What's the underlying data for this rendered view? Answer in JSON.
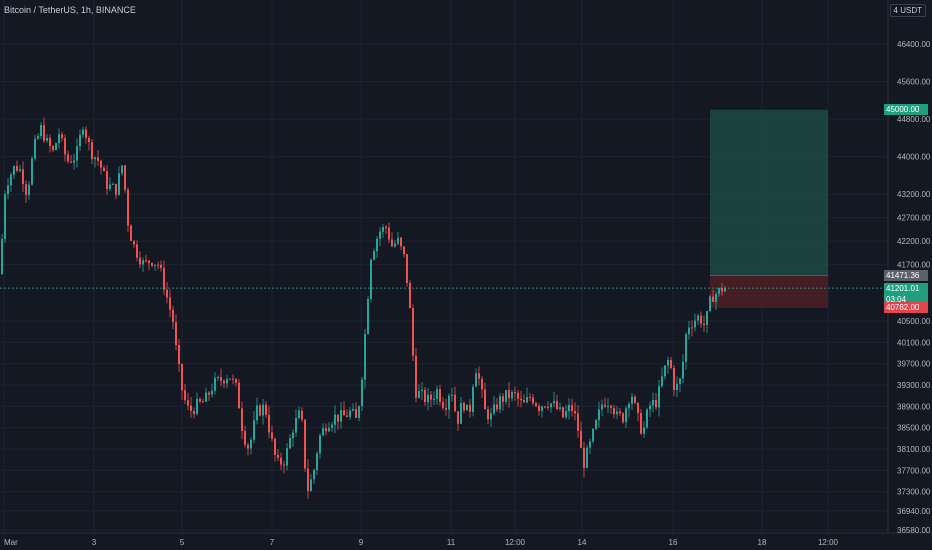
{
  "header": {
    "symbol": "Bitcoin / TetherUS, 1h, BINANCE",
    "currency": "USDT",
    "currency_prefix": "4"
  },
  "markers": {
    "target": {
      "price": "45000.00",
      "color": "#1f9f7f"
    },
    "entry_ref": {
      "price": "41471.36",
      "color": "#5c606b"
    },
    "last": {
      "price": "41201.01",
      "countdown": "03:04",
      "color": "#1f9f7f"
    },
    "stop": {
      "price": "40782.00",
      "color": "#e0464c"
    }
  },
  "chart_data": {
    "type": "candlestick",
    "title": "Bitcoin / TetherUS, 1h, BINANCE",
    "y_axis": {
      "ticks": [
        46400,
        45600,
        44800,
        44000,
        43200,
        42700,
        42200,
        41700,
        40500,
        40100,
        39700,
        39300,
        38900,
        38500,
        38100,
        37700,
        37300,
        36940,
        36580
      ],
      "tick_labels": [
        "46400.00",
        "45600.00",
        "44800.00",
        "44000.00",
        "43200.00",
        "42700.00",
        "42200.00",
        "41700.00",
        "40500.00",
        "40100.00",
        "39700.00",
        "39300.00",
        "38900.00",
        "38500.00",
        "38100.00",
        "37700.00",
        "37300.00",
        "36940.00",
        "36580.00"
      ],
      "range": [
        36500,
        47300
      ]
    },
    "x_axis": {
      "tick_labels": [
        "Mar",
        "3",
        "5",
        "7",
        "9",
        "11",
        "12:00",
        "14",
        "16",
        "18",
        "12:00"
      ]
    },
    "path": [
      [
        0,
        41500
      ],
      [
        2,
        43000
      ],
      [
        5,
        43400
      ],
      [
        9,
        43600
      ],
      [
        14,
        43800
      ],
      [
        20,
        43700
      ],
      [
        26,
        43200
      ],
      [
        33,
        44200
      ],
      [
        40,
        44600
      ],
      [
        46,
        44300
      ],
      [
        52,
        44100
      ],
      [
        58,
        44500
      ],
      [
        66,
        43900
      ],
      [
        75,
        44000
      ],
      [
        82,
        44700
      ],
      [
        90,
        44100
      ],
      [
        98,
        43900
      ],
      [
        106,
        43400
      ],
      [
        115,
        43300
      ],
      [
        122,
        43900
      ],
      [
        126,
        42700
      ],
      [
        131,
        42200
      ],
      [
        137,
        41900
      ],
      [
        143,
        41700
      ],
      [
        150,
        41800
      ],
      [
        158,
        41700
      ],
      [
        166,
        41000
      ],
      [
        172,
        40500
      ],
      [
        176,
        39800
      ],
      [
        182,
        39100
      ],
      [
        188,
        38800
      ],
      [
        195,
        38900
      ],
      [
        204,
        39000
      ],
      [
        212,
        39300
      ],
      [
        220,
        39400
      ],
      [
        228,
        39500
      ],
      [
        236,
        39200
      ],
      [
        242,
        38400
      ],
      [
        248,
        38100
      ],
      [
        256,
        38800
      ],
      [
        264,
        38900
      ],
      [
        270,
        38300
      ],
      [
        276,
        37800
      ],
      [
        284,
        37900
      ],
      [
        292,
        38500
      ],
      [
        300,
        38800
      ],
      [
        306,
        37300
      ],
      [
        312,
        37600
      ],
      [
        318,
        38300
      ],
      [
        326,
        38600
      ],
      [
        334,
        38700
      ],
      [
        342,
        38700
      ],
      [
        350,
        38800
      ],
      [
        356,
        38600
      ],
      [
        362,
        39700
      ],
      [
        370,
        41900
      ],
      [
        378,
        42400
      ],
      [
        385,
        42500
      ],
      [
        391,
        42100
      ],
      [
        397,
        42200
      ],
      [
        404,
        41800
      ],
      [
        410,
        40500
      ],
      [
        414,
        39200
      ],
      [
        420,
        39100
      ],
      [
        428,
        39000
      ],
      [
        436,
        39200
      ],
      [
        444,
        38900
      ],
      [
        450,
        39300
      ],
      [
        456,
        38600
      ],
      [
        462,
        39000
      ],
      [
        468,
        38700
      ],
      [
        474,
        39700
      ],
      [
        478,
        39400
      ],
      [
        484,
        38800
      ],
      [
        490,
        38700
      ],
      [
        498,
        39000
      ],
      [
        506,
        39100
      ],
      [
        514,
        39100
      ],
      [
        522,
        38900
      ],
      [
        530,
        39100
      ],
      [
        538,
        38900
      ],
      [
        546,
        39000
      ],
      [
        554,
        38900
      ],
      [
        562,
        38700
      ],
      [
        570,
        38900
      ],
      [
        576,
        38600
      ],
      [
        582,
        37800
      ],
      [
        588,
        38100
      ],
      [
        594,
        38500
      ],
      [
        602,
        39000
      ],
      [
        610,
        39000
      ],
      [
        616,
        38700
      ],
      [
        622,
        38700
      ],
      [
        630,
        39200
      ],
      [
        636,
        38700
      ],
      [
        642,
        38400
      ],
      [
        648,
        38900
      ],
      [
        656,
        39000
      ],
      [
        662,
        39500
      ],
      [
        668,
        39800
      ],
      [
        674,
        39200
      ],
      [
        680,
        39400
      ],
      [
        686,
        40400
      ],
      [
        692,
        40500
      ],
      [
        698,
        40600
      ],
      [
        704,
        40400
      ],
      [
        710,
        41000
      ],
      [
        716,
        41100
      ],
      [
        722,
        41200
      ],
      [
        726,
        41201
      ]
    ],
    "annotations": {
      "target_zone": [
        45000,
        41471.36
      ],
      "stop_zone": [
        41471.36,
        40782
      ],
      "last_price": 41201.01
    }
  },
  "colors": {
    "background": "#141823",
    "grid": "#1d2230",
    "up": "#26a69a",
    "down": "#ef5350",
    "target_zone": "#1d4a45",
    "stop_zone": "#4a1e25"
  }
}
